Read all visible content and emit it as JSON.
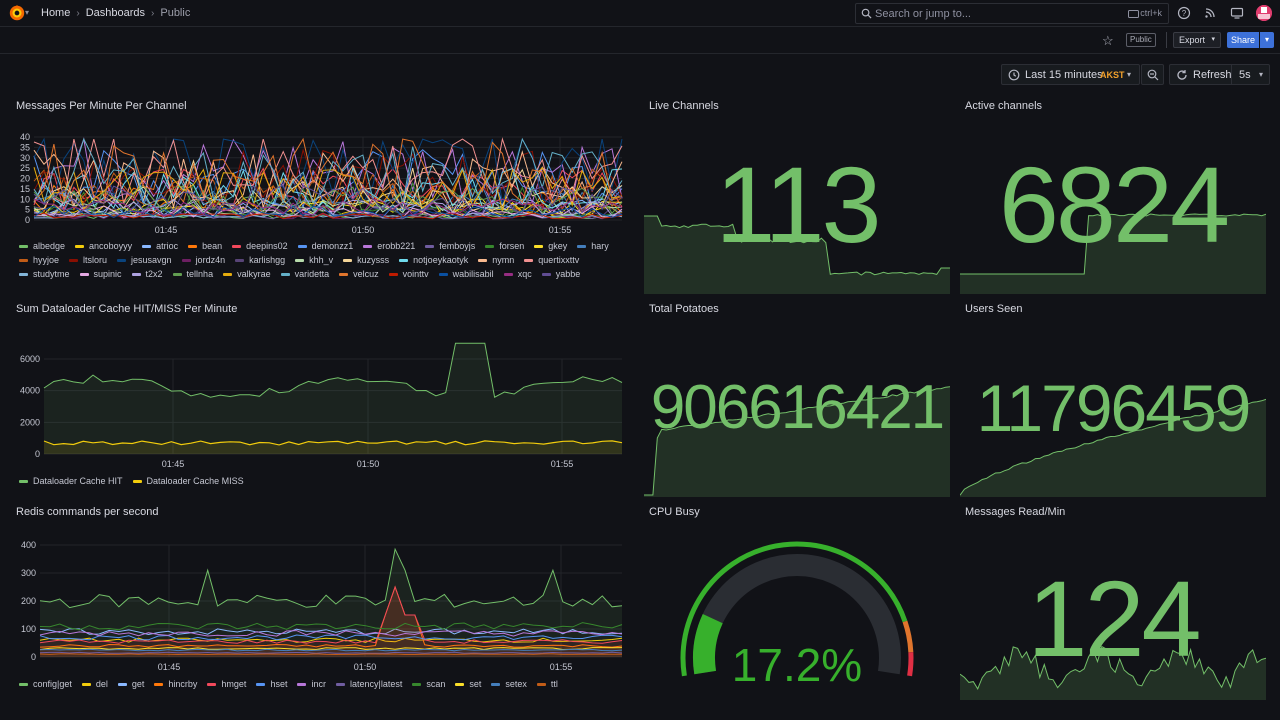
{
  "header": {
    "breadcrumbs": [
      "Home",
      "Dashboards",
      "Public"
    ],
    "search_placeholder": "Search or jump to...",
    "search_shortcut": "ctrl+k"
  },
  "toolbar": {
    "public_badge": "Public",
    "export_label": "Export",
    "share_label": "Share"
  },
  "time_controls": {
    "range_label": "Last 15 minutes",
    "timezone": "AKST",
    "refresh_label": "Refresh",
    "interval": "5s"
  },
  "colors": {
    "background": "#111217",
    "stat_green": "#73bf69",
    "gauge_green": "#37b02c",
    "accent_blue": "#3d71d9",
    "timezone_orange": "#f2a12c"
  },
  "panels": {
    "messages_per_minute": {
      "title": "Messages Per Minute Per Channel",
      "x_ticks": [
        "01:45",
        "01:50",
        "01:55"
      ],
      "y_ticks": [
        "40",
        "35",
        "30",
        "25",
        "20",
        "15",
        "10",
        "5",
        "0"
      ],
      "legend": [
        {
          "name": "albedge",
          "color": "#73bf69"
        },
        {
          "name": "ancoboyyy",
          "color": "#f2cc0c"
        },
        {
          "name": "atrioc",
          "color": "#8ab8ff"
        },
        {
          "name": "bean",
          "color": "#ff780a"
        },
        {
          "name": "deepins02",
          "color": "#f2495c"
        },
        {
          "name": "demonzz1",
          "color": "#5794f2"
        },
        {
          "name": "erobb221",
          "color": "#b877d9"
        },
        {
          "name": "femboyjs",
          "color": "#705da0"
        },
        {
          "name": "forsen",
          "color": "#37872d"
        },
        {
          "name": "gkey",
          "color": "#fade2a"
        },
        {
          "name": "hary",
          "color": "#447ebc"
        },
        {
          "name": "hyyjoe",
          "color": "#c15c17"
        },
        {
          "name": "ltsloru",
          "color": "#890f02"
        },
        {
          "name": "jesusavgn",
          "color": "#0a437c"
        },
        {
          "name": "jordz4n",
          "color": "#6d1f62"
        },
        {
          "name": "karlishgg",
          "color": "#584477"
        },
        {
          "name": "khh_v",
          "color": "#b7dbab"
        },
        {
          "name": "kuzysss",
          "color": "#f4d598"
        },
        {
          "name": "notjoeykaotyk",
          "color": "#70dbed"
        },
        {
          "name": "nymn",
          "color": "#f9ba8f"
        },
        {
          "name": "quertixxttv",
          "color": "#f29191"
        },
        {
          "name": "studytme",
          "color": "#82b5d8"
        },
        {
          "name": "supinic",
          "color": "#e5a8e2"
        },
        {
          "name": "t2x2",
          "color": "#aea2e0"
        },
        {
          "name": "tellnha",
          "color": "#629e51"
        },
        {
          "name": "valkyrae",
          "color": "#e5ac0e"
        },
        {
          "name": "varidetta",
          "color": "#64b0c8"
        },
        {
          "name": "velcuz",
          "color": "#e0752d"
        },
        {
          "name": "vointtv",
          "color": "#bf1b00"
        },
        {
          "name": "wabilisabil",
          "color": "#0a50a1"
        },
        {
          "name": "xqc",
          "color": "#962d82"
        },
        {
          "name": "yabbe",
          "color": "#614d93"
        }
      ]
    },
    "live_channels": {
      "title": "Live Channels",
      "value": "113"
    },
    "active_channels": {
      "title": "Active channels",
      "value": "6824"
    },
    "cache_hit_miss": {
      "title": "Sum Dataloader Cache HIT/MISS Per Minute",
      "x_ticks": [
        "01:45",
        "01:50",
        "01:55"
      ],
      "y_ticks": [
        "6000",
        "4000",
        "2000",
        "0"
      ],
      "legend": [
        {
          "name": "Dataloader Cache HIT",
          "color": "#73bf69"
        },
        {
          "name": "Dataloader Cache MISS",
          "color": "#f2cc0c"
        }
      ]
    },
    "total_potatoes": {
      "title": "Total Potatoes",
      "value": "906616421"
    },
    "users_seen": {
      "title": "Users Seen",
      "value": "11796459"
    },
    "redis_commands": {
      "title": "Redis commands per second",
      "x_ticks": [
        "01:45",
        "01:50",
        "01:55"
      ],
      "y_ticks": [
        "400",
        "300",
        "200",
        "100",
        "0"
      ],
      "legend": [
        {
          "name": "config|get",
          "color": "#73bf69"
        },
        {
          "name": "del",
          "color": "#f2cc0c"
        },
        {
          "name": "get",
          "color": "#8ab8ff"
        },
        {
          "name": "hincrby",
          "color": "#ff780a"
        },
        {
          "name": "hmget",
          "color": "#f2495c"
        },
        {
          "name": "hset",
          "color": "#5794f2"
        },
        {
          "name": "incr",
          "color": "#b877d9"
        },
        {
          "name": "latency|latest",
          "color": "#705da0"
        },
        {
          "name": "scan",
          "color": "#37872d"
        },
        {
          "name": "set",
          "color": "#fade2a"
        },
        {
          "name": "setex",
          "color": "#447ebc"
        },
        {
          "name": "ttl",
          "color": "#c15c17"
        }
      ]
    },
    "cpu_busy": {
      "title": "CPU Busy",
      "value": "17.2%",
      "percent": 17.2
    },
    "messages_read": {
      "title": "Messages Read/Min",
      "value": "124"
    }
  }
}
